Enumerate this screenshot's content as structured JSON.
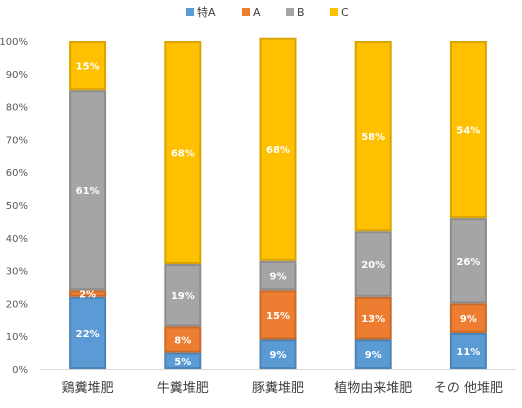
{
  "chart_data": {
    "type": "bar",
    "stacked": true,
    "percent_stacked": true,
    "title": "",
    "xlabel": "",
    "ylabel": "",
    "ylim": [
      0,
      100
    ],
    "y_ticks": [
      "0%",
      "10%",
      "20%",
      "30%",
      "40%",
      "50%",
      "60%",
      "70%",
      "80%",
      "90%",
      "100%"
    ],
    "grid": false,
    "legend_position": "top",
    "categories": [
      "鶏糞堆肥",
      "牛糞堆肥",
      "豚糞堆肥",
      "植物由来堆肥",
      "その 他堆肥"
    ],
    "series": [
      {
        "name": "特A",
        "color": "#5B9BD5",
        "values": [
          22,
          5,
          9,
          9,
          11
        ],
        "labels": [
          "22%",
          "5%",
          "9%",
          "9%",
          "11%"
        ]
      },
      {
        "name": "A",
        "color": "#ED7D31",
        "values": [
          2,
          8,
          15,
          13,
          9
        ],
        "labels": [
          "2%",
          "8%",
          "15%",
          "13%",
          "9%"
        ]
      },
      {
        "name": "B",
        "color": "#A5A5A5",
        "values": [
          61,
          19,
          9,
          20,
          26
        ],
        "labels": [
          "61%",
          "19%",
          "9%",
          "20%",
          "26%"
        ]
      },
      {
        "name": "C",
        "color": "#FFC000",
        "values": [
          15,
          68,
          68,
          58,
          54
        ],
        "labels": [
          "15%",
          "68%",
          "68%",
          "58%",
          "54%"
        ]
      }
    ]
  }
}
